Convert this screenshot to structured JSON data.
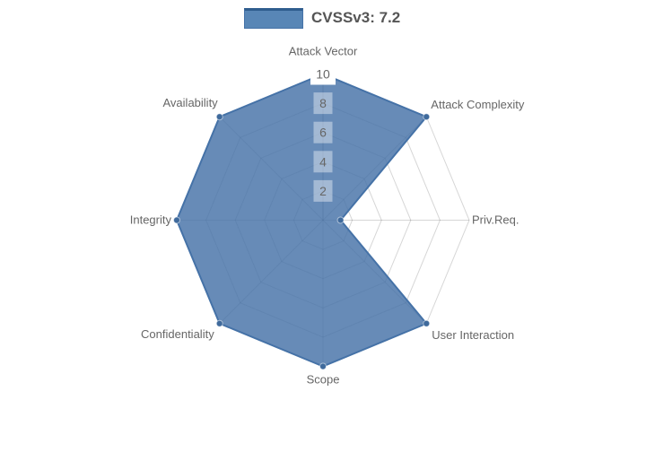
{
  "chart_data": {
    "type": "radar",
    "categories": [
      "Attack Vector",
      "Attack Complexity",
      "Priv.Req.",
      "User Interaction",
      "Scope",
      "Confidentiality",
      "Integrity",
      "Availability"
    ],
    "series": [
      {
        "name": "CVSSv3: 7.2",
        "values": [
          10,
          10,
          1.2,
          10,
          10,
          10,
          10,
          10
        ]
      }
    ],
    "ticks": [
      2,
      4,
      6,
      8,
      10
    ],
    "ylim": [
      0,
      10
    ],
    "grid_shape": "polygon",
    "legend_position": "top-center",
    "colors": {
      "series_fill": "rgba(69,114,167,0.82)",
      "series_line": "#4572A7",
      "marker": "#3F6A9C",
      "grid_line": "rgba(0,0,0,0.16)",
      "axis_line": "rgba(0,0,0,0.28)",
      "axis_label": "#666666",
      "tick_label": "#666666",
      "tick_box_bg": "rgba(255,255,255,0.4)",
      "tick_box_top_bg": "#ffffff",
      "legend_text": "#555555",
      "legend_swatch": "#5886B6",
      "legend_swatch_border": "#2F5D8E",
      "background": "#ffffff"
    }
  }
}
